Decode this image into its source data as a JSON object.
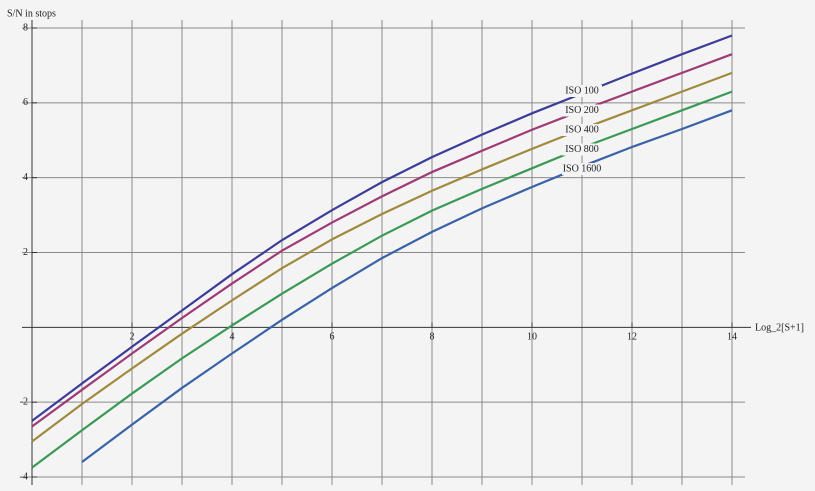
{
  "chart_data": {
    "type": "line",
    "y_label": "S/N in stops",
    "x_label": "Log_2[S+1]",
    "x": [
      0,
      1,
      2,
      3,
      4,
      5,
      6,
      7,
      8,
      9,
      10,
      11,
      12,
      13,
      14
    ],
    "series": [
      {
        "name": "ISO 100",
        "color": "#3b3d98",
        "values": [
          -2.5,
          -1.5,
          -0.52,
          0.45,
          1.42,
          2.33,
          3.13,
          3.88,
          4.55,
          5.15,
          5.72,
          6.25,
          6.78,
          7.3,
          7.8
        ]
      },
      {
        "name": "ISO 200",
        "color": "#9e3a76",
        "values": [
          -2.65,
          -1.67,
          -0.7,
          0.25,
          1.17,
          2.05,
          2.8,
          3.5,
          4.15,
          4.72,
          5.28,
          5.8,
          6.3,
          6.8,
          7.3
        ]
      },
      {
        "name": "ISO 400",
        "color": "#a08a3e",
        "values": [
          -3.05,
          -2.05,
          -1.1,
          -0.17,
          0.72,
          1.58,
          2.35,
          3.03,
          3.65,
          4.22,
          4.77,
          5.3,
          5.8,
          6.3,
          6.8
        ]
      },
      {
        "name": "ISO 800",
        "color": "#3a9a55",
        "values": [
          -3.75,
          -2.75,
          -1.77,
          -0.83,
          0.05,
          0.9,
          1.7,
          2.45,
          3.12,
          3.7,
          4.25,
          4.8,
          5.3,
          5.8,
          6.3
        ]
      },
      {
        "name": "ISO 1600",
        "color": "#3a62a6",
        "values": [
          null,
          -3.6,
          -2.6,
          -1.62,
          -0.7,
          0.2,
          1.05,
          1.85,
          2.55,
          3.18,
          3.75,
          4.3,
          4.82,
          5.3,
          5.8
        ]
      }
    ],
    "xlim": [
      0,
      14.26
    ],
    "ylim": [
      -4,
      8
    ],
    "xticks": [
      2,
      4,
      6,
      8,
      10,
      12,
      14
    ],
    "xminor_grid": [
      1,
      3,
      5,
      7,
      9,
      11,
      13
    ],
    "yticks": [
      -4,
      -2,
      2,
      4,
      6,
      8
    ],
    "grid": true
  }
}
